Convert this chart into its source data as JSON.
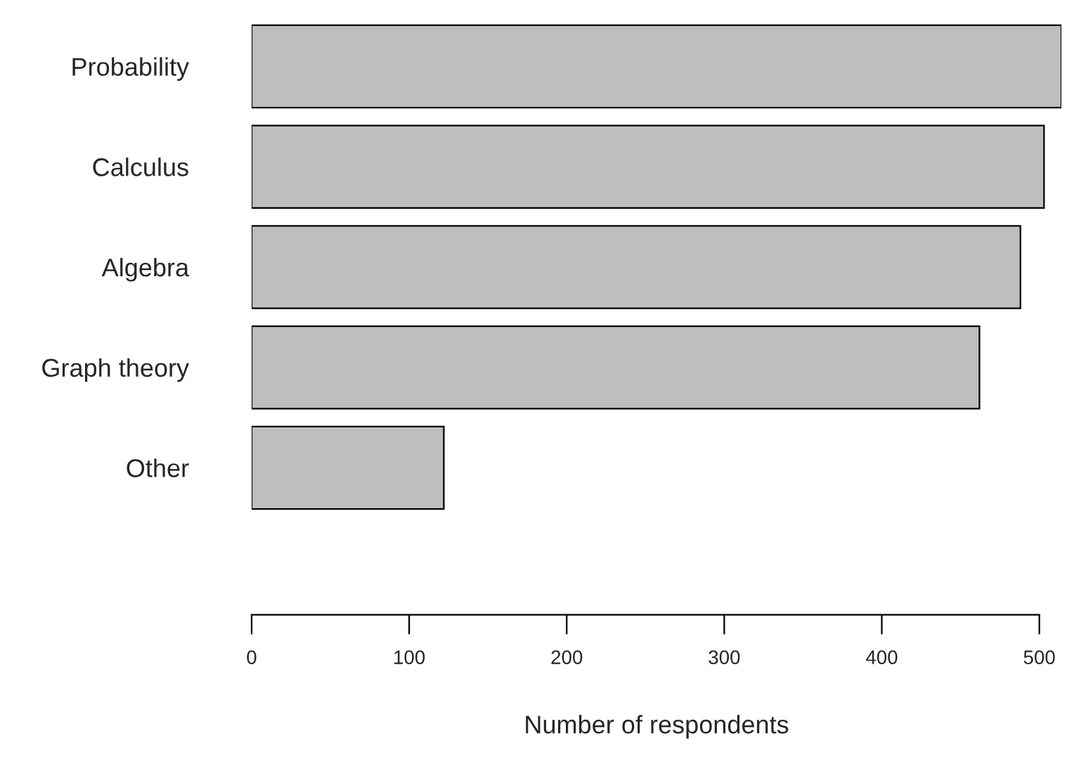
{
  "chart_data": {
    "type": "bar",
    "orientation": "horizontal",
    "categories": [
      "Probability",
      "Calculus",
      "Algebra",
      "Graph theory",
      "Other"
    ],
    "values": [
      514,
      503,
      488,
      462,
      122
    ],
    "color": "#bebebe",
    "xlabel": "Number of respondents",
    "xlim": [
      0,
      514
    ],
    "xticks": [
      0,
      100,
      200,
      300,
      400,
      500
    ],
    "grid": false,
    "legend": false
  }
}
